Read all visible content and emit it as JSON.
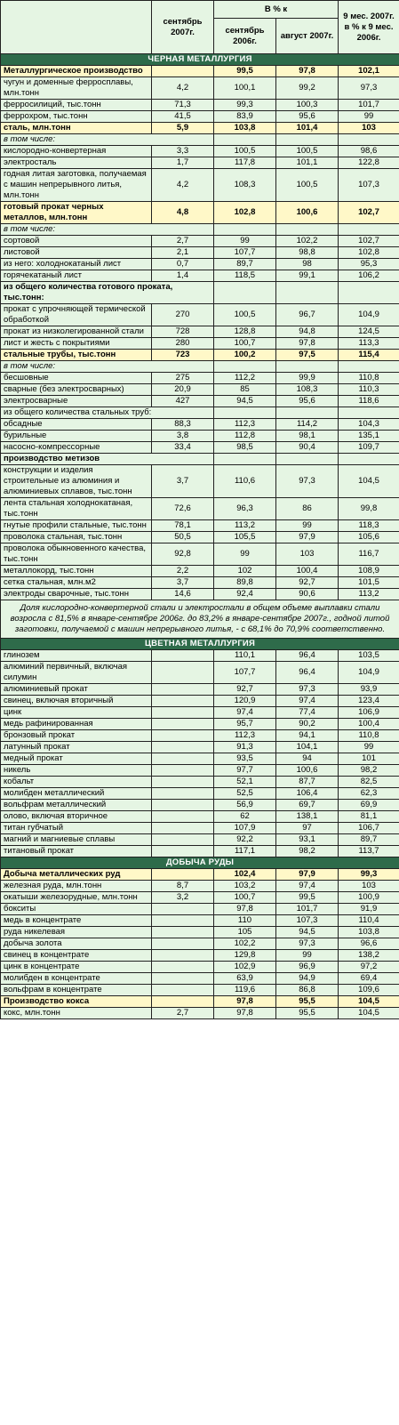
{
  "headers": {
    "col1": "сентябрь 2007г.",
    "group": "В % к",
    "col2": "сентябрь 2006г.",
    "col3": "август 2007г.",
    "col4": "9 мес. 2007г. в % к 9 мес. 2006г."
  },
  "rows": [
    {
      "type": "sec",
      "label": "ЧЕРНАЯ МЕТАЛЛУРГИЯ"
    },
    {
      "type": "hl",
      "label": "Металлургическое производство",
      "c1": "",
      "c2": "99,5",
      "c3": "97,8",
      "c4": "102,1"
    },
    {
      "label": "чугун и доменные ферросплавы, млн.тонн",
      "c1": "4,2",
      "c2": "100,1",
      "c3": "99,2",
      "c4": "97,3"
    },
    {
      "label": "ферросилиций, тыс.тонн",
      "c1": "71,3",
      "c2": "99,3",
      "c3": "100,3",
      "c4": "101,7"
    },
    {
      "label": "феррохром, тыс.тонн",
      "c1": "41,5",
      "c2": "83,9",
      "c3": "95,6",
      "c4": "99"
    },
    {
      "type": "hl",
      "label": "сталь, млн.тонн",
      "c1": "5,9",
      "c2": "103,8",
      "c3": "101,4",
      "c4": "103"
    },
    {
      "type": "it",
      "label": "в том числе:",
      "span": true
    },
    {
      "label": "кислородно-конвертерная",
      "c1": "3,3",
      "c2": "100,5",
      "c3": "100,5",
      "c4": "98,6"
    },
    {
      "label": "электросталь",
      "c1": "1,7",
      "c2": "117,8",
      "c3": "101,1",
      "c4": "122,8"
    },
    {
      "label": "годная литая заготовка, получаемая с машин непрерывного литья, млн.тонн",
      "c1": "4,2",
      "c2": "108,3",
      "c3": "100,5",
      "c4": "107,3"
    },
    {
      "type": "hl",
      "label": "готовый прокат черных металлов, млн.тонн",
      "c1": "4,8",
      "c2": "102,8",
      "c3": "100,6",
      "c4": "102,7"
    },
    {
      "type": "it",
      "label": "в том числе:",
      "span": true
    },
    {
      "label": "сортовой",
      "c1": "2,7",
      "c2": "99",
      "c3": "102,2",
      "c4": "102,7"
    },
    {
      "label": "листовой",
      "c1": "2,1",
      "c2": "107,7",
      "c3": "98,8",
      "c4": "102,8"
    },
    {
      "label": "из него: холоднокатаный лист",
      "c1": "0,7",
      "c2": "89,7",
      "c3": "98",
      "c4": "95,3"
    },
    {
      "label": "горячекатаный лист",
      "c1": "1,4",
      "c2": "118,5",
      "c3": "99,1",
      "c4": "106,2"
    },
    {
      "type": "bold",
      "label": "из общего количества готового проката, тыс.тонн:",
      "span": true
    },
    {
      "label": "прокат с упрочняющей термической обработкой",
      "c1": "270",
      "c2": "100,5",
      "c3": "96,7",
      "c4": "104,9"
    },
    {
      "label": "прокат из низколегированной стали",
      "c1": "728",
      "c2": "128,8",
      "c3": "94,8",
      "c4": "124,5"
    },
    {
      "label": "лист и жесть с покрытиями",
      "c1": "280",
      "c2": "100,7",
      "c3": "97,8",
      "c4": "113,3"
    },
    {
      "type": "hl",
      "label": "стальные трубы, тыс.тонн",
      "c1": "723",
      "c2": "100,2",
      "c3": "97,5",
      "c4": "115,4"
    },
    {
      "type": "it",
      "label": "в том числе:",
      "span": true
    },
    {
      "label": "бесшовные",
      "c1": "275",
      "c2": "112,2",
      "c3": "99,9",
      "c4": "110,8"
    },
    {
      "label": "сварные (без электросварных)",
      "c1": "20,9",
      "c2": "85",
      "c3": "108,3",
      "c4": "110,3"
    },
    {
      "label": "электросварные",
      "c1": "427",
      "c2": "94,5",
      "c3": "95,6",
      "c4": "118,6"
    },
    {
      "label": "из общего количества стальных труб:",
      "span": true
    },
    {
      "label": "обсадные",
      "c1": "88,3",
      "c2": "112,3",
      "c3": "114,2",
      "c4": "104,3"
    },
    {
      "label": "бурильные",
      "c1": "3,8",
      "c2": "112,8",
      "c3": "98,1",
      "c4": "135,1"
    },
    {
      "label": "насосно-компрессорные",
      "c1": "33,4",
      "c2": "98,5",
      "c3": "90,4",
      "c4": "109,7"
    },
    {
      "type": "bold",
      "label": "производство метизов",
      "span": true
    },
    {
      "label": "конструкции и изделия строительные из алюминия и алюминиевых сплавов, тыс.тонн",
      "c1": "3,7",
      "c2": "110,6",
      "c3": "97,3",
      "c4": "104,5"
    },
    {
      "label": "лента стальная холоднокатаная, тыс.тонн",
      "c1": "72,6",
      "c2": "96,3",
      "c3": "86",
      "c4": "99,8"
    },
    {
      "label": "гнутые профили стальные, тыс.тонн",
      "c1": "78,1",
      "c2": "113,2",
      "c3": "99",
      "c4": "118,3"
    },
    {
      "label": "проволока стальная, тыс.тонн",
      "c1": "50,5",
      "c2": "105,5",
      "c3": "97,9",
      "c4": "105,6"
    },
    {
      "label": "проволока обыкновенного качества, тыс.тонн",
      "c1": "92,8",
      "c2": "99",
      "c3": "103",
      "c4": "116,7"
    },
    {
      "label": "металлокорд, тыс.тонн",
      "c1": "2,2",
      "c2": "102",
      "c3": "100,4",
      "c4": "108,9"
    },
    {
      "label": "сетка стальная, млн.м2",
      "c1": "3,7",
      "c2": "89,8",
      "c3": "92,7",
      "c4": "101,5"
    },
    {
      "label": "электроды сварочные, тыс.тонн",
      "c1": "14,6",
      "c2": "92,4",
      "c3": "90,6",
      "c4": "113,2"
    },
    {
      "type": "note",
      "label": "Доля кислородно-конвертерной стали и электростали в общем объеме выплавки стали возросла с 81,5% в январе-сентябре 2006г. до 83,2% в январе-сентябре 2007г., годной литой заготовки, получаемой с машин непрерывного литья, - с 68,1% до 70,9% соответственно."
    },
    {
      "type": "sec",
      "label": "ЦВЕТНАЯ МЕТАЛЛУРГИЯ"
    },
    {
      "label": "глинозем",
      "c1": "",
      "c2": "110,1",
      "c3": "96,4",
      "c4": "103,5"
    },
    {
      "label": "алюминий первичный, включая силумин",
      "c1": "",
      "c2": "107,7",
      "c3": "96,4",
      "c4": "104,9"
    },
    {
      "label": "алюминиевый прокат",
      "c1": "",
      "c2": "92,7",
      "c3": "97,3",
      "c4": "93,9"
    },
    {
      "label": "свинец, включая вторичный",
      "c1": "",
      "c2": "120,9",
      "c3": "97,4",
      "c4": "123,4"
    },
    {
      "label": "цинк",
      "c1": "",
      "c2": "97,4",
      "c3": "77,4",
      "c4": "106,9"
    },
    {
      "label": "медь рафинированная",
      "c1": "",
      "c2": "95,7",
      "c3": "90,2",
      "c4": "100,4"
    },
    {
      "label": "бронзовый прокат",
      "c1": "",
      "c2": "112,3",
      "c3": "94,1",
      "c4": "110,8"
    },
    {
      "label": "латунный прокат",
      "c1": "",
      "c2": "91,3",
      "c3": "104,1",
      "c4": "99"
    },
    {
      "label": "медный прокат",
      "c1": "",
      "c2": "93,5",
      "c3": "94",
      "c4": "101"
    },
    {
      "label": "никель",
      "c1": "",
      "c2": "97,7",
      "c3": "100,6",
      "c4": "98,2"
    },
    {
      "label": "кобальт",
      "c1": "",
      "c2": "52,1",
      "c3": "87,7",
      "c4": "82,5"
    },
    {
      "label": "молибден металлический",
      "c1": "",
      "c2": "52,5",
      "c3": "106,4",
      "c4": "62,3"
    },
    {
      "label": "вольфрам металлический",
      "c1": "",
      "c2": "56,9",
      "c3": "69,7",
      "c4": "69,9"
    },
    {
      "label": "олово, включая вторичное",
      "c1": "",
      "c2": "62",
      "c3": "138,1",
      "c4": "81,1"
    },
    {
      "label": "титан губчатый",
      "c1": "",
      "c2": "107,9",
      "c3": "97",
      "c4": "106,7"
    },
    {
      "label": "магний и магниевые сплавы",
      "c1": "",
      "c2": "92,2",
      "c3": "93,1",
      "c4": "89,7"
    },
    {
      "label": "титановый прокат",
      "c1": "",
      "c2": "117,1",
      "c3": "98,2",
      "c4": "113,7"
    },
    {
      "type": "sec",
      "label": "ДОБЫЧА РУДЫ"
    },
    {
      "type": "hl",
      "label": "Добыча металлических руд",
      "c1": "",
      "c2": "102,4",
      "c3": "97,9",
      "c4": "99,3"
    },
    {
      "label": "железная руда, млн.тонн",
      "c1": "8,7",
      "c2": "103,2",
      "c3": "97,4",
      "c4": "103"
    },
    {
      "label": "окатыши железорудные, млн.тонн",
      "c1": "3,2",
      "c2": "100,7",
      "c3": "99,5",
      "c4": "100,9"
    },
    {
      "label": "бокситы",
      "c1": "",
      "c2": "97,8",
      "c3": "101,7",
      "c4": "91,9"
    },
    {
      "label": "медь в концентрате",
      "c1": "",
      "c2": "110",
      "c3": "107,3",
      "c4": "110,4"
    },
    {
      "label": "руда никелевая",
      "c1": "",
      "c2": "105",
      "c3": "94,5",
      "c4": "103,8"
    },
    {
      "label": "добыча золота",
      "c1": "",
      "c2": "102,2",
      "c3": "97,3",
      "c4": "96,6"
    },
    {
      "label": "свинец в концентрате",
      "c1": "",
      "c2": "129,8",
      "c3": "99",
      "c4": "138,2"
    },
    {
      "label": "цинк в концентрате",
      "c1": "",
      "c2": "102,9",
      "c3": "96,9",
      "c4": "97,2"
    },
    {
      "label": "молибден в концентрате",
      "c1": "",
      "c2": "63,9",
      "c3": "94,9",
      "c4": "69,4"
    },
    {
      "label": "вольфрам в концентрате",
      "c1": "",
      "c2": "119,6",
      "c3": "86,8",
      "c4": "109,6"
    },
    {
      "type": "hl",
      "label": "Производство кокса",
      "c1": "",
      "c2": "97,8",
      "c3": "95,5",
      "c4": "104,5"
    },
    {
      "label": "кокс, млн.тонн",
      "c1": "2,7",
      "c2": "97,8",
      "c3": "95,5",
      "c4": "104,5"
    }
  ]
}
